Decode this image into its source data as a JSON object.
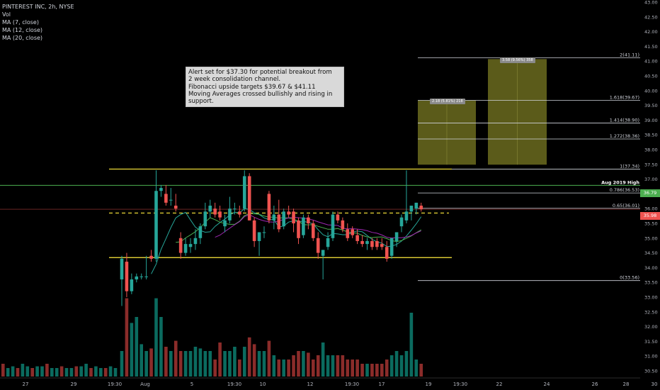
{
  "legend": {
    "symbol": "PINTEREST INC, 2h, NYSE",
    "vol": "Vol",
    "ma7": "MA (7, close)",
    "ma12": "MA (12, close)",
    "ma20": "MA (20, close)"
  },
  "note": {
    "text": "Alert set for $37.30 for potential breakout from\n2 week consolidation channel.\nFibonacci upside targets $39.67 & $41.11\nMoving Averages crossed bullishly and rising in support."
  },
  "boxes": {
    "label_a": "2.18 (5.81%) 218",
    "label_b": "3.58 (9.56%) 358"
  },
  "price_tags": {
    "high": "36.79",
    "current": "35.98"
  },
  "colors": {
    "up": "#26a69a",
    "down": "#ef5350",
    "ma7": "#26a69a",
    "ma12": "#4caf50",
    "ma20": "#9c27b0",
    "channel": "#ffeb3b",
    "fib": "#d1d4dc",
    "aug_high": "#4caf50",
    "target_fill": "#6b6b1f"
  },
  "chart_data": {
    "type": "candlestick",
    "title": "PINTEREST INC, 2h, NYSE",
    "ylim": [
      30.4,
      43.0
    ],
    "y_ticks": [
      "43.00",
      "42.50",
      "42.00",
      "41.50",
      "41.00",
      "40.50",
      "40.00",
      "39.50",
      "39.00",
      "38.50",
      "38.00",
      "37.50",
      "37.00",
      "36.50",
      "36.00",
      "35.50",
      "35.00",
      "34.50",
      "34.00",
      "33.50",
      "33.00",
      "32.50",
      "32.00",
      "31.50",
      "31.00",
      "30.50"
    ],
    "x_ticks": [
      "27",
      "29",
      "19:30",
      "Aug",
      "5",
      "19:30",
      "10",
      "12",
      "19:30",
      "17",
      "19",
      "19:30",
      "22",
      "24",
      "26",
      "28",
      "30",
      "Se"
    ],
    "candles": [
      {
        "o": 33.6,
        "h": 34.4,
        "l": 32.7,
        "c": 34.3
      },
      {
        "o": 34.2,
        "h": 34.5,
        "l": 33.0,
        "c": 33.2
      },
      {
        "o": 33.2,
        "h": 33.8,
        "l": 33.1,
        "c": 33.6
      },
      {
        "o": 33.6,
        "h": 33.8,
        "l": 33.5,
        "c": 33.7
      },
      {
        "o": 33.7,
        "h": 33.8,
        "l": 33.6,
        "c": 33.7
      },
      {
        "o": 33.7,
        "h": 34.4,
        "l": 33.6,
        "c": 33.7
      },
      {
        "o": 34.4,
        "h": 34.6,
        "l": 34.2,
        "c": 34.3
      },
      {
        "o": 34.3,
        "h": 37.3,
        "l": 34.2,
        "c": 36.6
      },
      {
        "o": 36.6,
        "h": 36.8,
        "l": 36.4,
        "c": 36.7
      },
      {
        "o": 36.5,
        "h": 36.8,
        "l": 36.1,
        "c": 36.2
      },
      {
        "o": 36.3,
        "h": 36.7,
        "l": 36.1,
        "c": 36.3
      },
      {
        "o": 36.1,
        "h": 36.5,
        "l": 35.9,
        "c": 36.0
      },
      {
        "o": 35.0,
        "h": 35.2,
        "l": 34.3,
        "c": 34.5
      },
      {
        "o": 34.5,
        "h": 35.0,
        "l": 34.4,
        "c": 34.8
      },
      {
        "o": 34.7,
        "h": 35.0,
        "l": 34.5,
        "c": 34.8
      },
      {
        "o": 34.8,
        "h": 35.3,
        "l": 34.6,
        "c": 35.0
      },
      {
        "o": 35.0,
        "h": 35.5,
        "l": 34.8,
        "c": 35.4
      },
      {
        "o": 35.4,
        "h": 36.2,
        "l": 35.3,
        "c": 35.9
      },
      {
        "o": 35.9,
        "h": 36.3,
        "l": 35.7,
        "c": 36.1
      },
      {
        "o": 36.0,
        "h": 36.2,
        "l": 35.7,
        "c": 35.8
      },
      {
        "o": 35.9,
        "h": 36.1,
        "l": 35.6,
        "c": 35.7
      },
      {
        "o": 35.4,
        "h": 35.8,
        "l": 35.2,
        "c": 35.6
      },
      {
        "o": 35.6,
        "h": 36.4,
        "l": 35.5,
        "c": 36.0
      },
      {
        "o": 36.0,
        "h": 36.2,
        "l": 35.8,
        "c": 36.0
      },
      {
        "o": 35.9,
        "h": 36.1,
        "l": 35.7,
        "c": 35.8
      },
      {
        "o": 36.0,
        "h": 37.3,
        "l": 35.9,
        "c": 37.1
      },
      {
        "o": 37.1,
        "h": 37.2,
        "l": 35.6,
        "c": 35.6
      },
      {
        "o": 35.6,
        "h": 35.7,
        "l": 34.7,
        "c": 34.9
      },
      {
        "o": 34.9,
        "h": 35.2,
        "l": 34.4,
        "c": 35.2
      },
      {
        "o": 35.2,
        "h": 35.4,
        "l": 35.0,
        "c": 35.2
      },
      {
        "o": 36.5,
        "h": 36.6,
        "l": 35.5,
        "c": 35.6
      },
      {
        "o": 35.6,
        "h": 36.1,
        "l": 35.3,
        "c": 35.8
      },
      {
        "o": 35.8,
        "h": 36.3,
        "l": 35.2,
        "c": 35.3
      },
      {
        "o": 35.4,
        "h": 36.0,
        "l": 35.3,
        "c": 35.9
      },
      {
        "o": 35.9,
        "h": 36.1,
        "l": 35.7,
        "c": 35.8
      },
      {
        "o": 35.9,
        "h": 36.0,
        "l": 35.2,
        "c": 35.5
      },
      {
        "o": 35.6,
        "h": 35.7,
        "l": 34.8,
        "c": 35.0
      },
      {
        "o": 35.1,
        "h": 35.8,
        "l": 35.0,
        "c": 35.7
      },
      {
        "o": 35.7,
        "h": 35.8,
        "l": 35.3,
        "c": 35.5
      },
      {
        "o": 35.5,
        "h": 35.6,
        "l": 34.9,
        "c": 35.0
      },
      {
        "o": 35.0,
        "h": 35.2,
        "l": 34.3,
        "c": 34.5
      },
      {
        "o": 34.4,
        "h": 34.6,
        "l": 33.6,
        "c": 34.6
      },
      {
        "o": 34.7,
        "h": 35.2,
        "l": 34.6,
        "c": 35.0
      },
      {
        "o": 35.0,
        "h": 35.9,
        "l": 34.9,
        "c": 35.8
      },
      {
        "o": 35.8,
        "h": 35.9,
        "l": 35.5,
        "c": 35.6
      },
      {
        "o": 35.6,
        "h": 35.7,
        "l": 35.2,
        "c": 35.3
      },
      {
        "o": 35.3,
        "h": 35.5,
        "l": 34.9,
        "c": 35.0
      },
      {
        "o": 35.3,
        "h": 35.4,
        "l": 35.0,
        "c": 35.1
      },
      {
        "o": 35.1,
        "h": 35.3,
        "l": 34.8,
        "c": 34.9
      },
      {
        "o": 34.9,
        "h": 35.1,
        "l": 34.7,
        "c": 34.8
      },
      {
        "o": 34.8,
        "h": 35.0,
        "l": 34.6,
        "c": 34.9
      },
      {
        "o": 34.9,
        "h": 35.0,
        "l": 34.6,
        "c": 34.7
      },
      {
        "o": 34.9,
        "h": 35.0,
        "l": 34.6,
        "c": 34.7
      },
      {
        "o": 34.8,
        "h": 35.0,
        "l": 34.6,
        "c": 34.7
      },
      {
        "o": 34.7,
        "h": 34.9,
        "l": 34.2,
        "c": 34.3
      },
      {
        "o": 34.4,
        "h": 35.0,
        "l": 34.3,
        "c": 35.0
      },
      {
        "o": 34.9,
        "h": 35.2,
        "l": 34.7,
        "c": 35.2
      },
      {
        "o": 35.4,
        "h": 35.8,
        "l": 35.2,
        "c": 35.7
      },
      {
        "o": 35.6,
        "h": 37.3,
        "l": 35.5,
        "c": 35.9
      },
      {
        "o": 35.9,
        "h": 36.1,
        "l": 35.6,
        "c": 36.1
      },
      {
        "o": 36.0,
        "h": 36.2,
        "l": 35.8,
        "c": 36.2
      },
      {
        "o": 36.1,
        "h": 36.2,
        "l": 35.9,
        "c": 35.98
      }
    ],
    "volume_relative": [
      0.3,
      0.92,
      0.63,
      0.7,
      0.38,
      0.3,
      0.33,
      0.92,
      0.7,
      0.35,
      0.3,
      0.42,
      0.3,
      0.3,
      0.3,
      0.35,
      0.33,
      0.3,
      0.3,
      0.2,
      0.4,
      0.3,
      0.3,
      0.35,
      0.2,
      0.35,
      0.46,
      0.38,
      0.3,
      0.3,
      0.42,
      0.25,
      0.2,
      0.2,
      0.2,
      0.25,
      0.3,
      0.3,
      0.28,
      0.2,
      0.25,
      0.4,
      0.25,
      0.25,
      0.25,
      0.25,
      0.2,
      0.2,
      0.2,
      0.15,
      0.15,
      0.15,
      0.15,
      0.15,
      0.2,
      0.25,
      0.3,
      0.25,
      0.3,
      0.75,
      0.2,
      0.15
    ],
    "levels": {
      "channel_top": 37.34,
      "channel_bottom": 34.34,
      "alert_dashed": 35.85,
      "aug_2019_high": 36.79,
      "current_price": 35.98
    },
    "fib_levels": [
      {
        "ratio": "2",
        "price": 41.11,
        "label": "2(41.11)"
      },
      {
        "ratio": "1.618",
        "price": 39.67,
        "label": "1.618(39.67)"
      },
      {
        "ratio": "1.414",
        "price": 38.9,
        "label": "1.414(38.90)"
      },
      {
        "ratio": "1.272",
        "price": 38.36,
        "label": "1.272(38.36)"
      },
      {
        "ratio": "1",
        "price": 37.34,
        "label": "1(37.34)"
      },
      {
        "ratio": "0.786",
        "price": 36.53,
        "label": "0.786(36.53)"
      },
      {
        "ratio": "0.65",
        "price": 36.01,
        "label": "0.65(36.01)"
      },
      {
        "ratio": "0",
        "price": 33.56,
        "label": "0(33.56)"
      }
    ],
    "aug_high_label": "Aug 2019 High",
    "target_boxes": [
      {
        "from": 37.49,
        "to": 39.67
      },
      {
        "from": 37.49,
        "to": 41.07
      }
    ]
  }
}
